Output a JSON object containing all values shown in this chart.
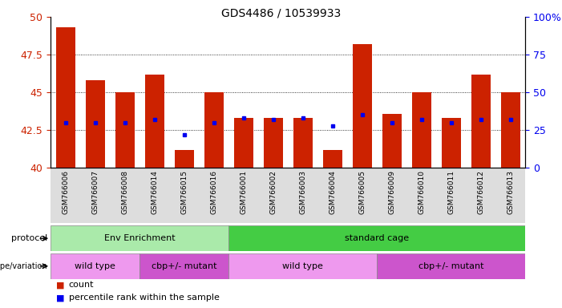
{
  "title": "GDS4486 / 10539933",
  "samples": [
    "GSM766006",
    "GSM766007",
    "GSM766008",
    "GSM766014",
    "GSM766015",
    "GSM766016",
    "GSM766001",
    "GSM766002",
    "GSM766003",
    "GSM766004",
    "GSM766005",
    "GSM766009",
    "GSM766010",
    "GSM766011",
    "GSM766012",
    "GSM766013"
  ],
  "bar_heights": [
    49.3,
    45.8,
    45.0,
    46.2,
    41.2,
    45.0,
    43.3,
    43.3,
    43.3,
    41.2,
    48.2,
    43.6,
    45.0,
    43.3,
    46.2,
    45.0
  ],
  "blue_dot_right": [
    30,
    30,
    30,
    32,
    22,
    30,
    33,
    32,
    33,
    28,
    35,
    30,
    32,
    30,
    32,
    32
  ],
  "ylim_left": [
    40,
    50
  ],
  "ylim_right": [
    0,
    100
  ],
  "yticks_left": [
    40,
    42.5,
    45,
    47.5,
    50
  ],
  "yticks_right": [
    0,
    25,
    50,
    75,
    100
  ],
  "bar_color": "#cc2200",
  "dot_color": "#0000ee",
  "background_color": "#ffffff",
  "protocol_groups": [
    {
      "label": "Env Enrichment",
      "start": 0,
      "end": 6,
      "color": "#aaeaaa"
    },
    {
      "label": "standard cage",
      "start": 6,
      "end": 16,
      "color": "#44cc44"
    }
  ],
  "genotype_groups": [
    {
      "label": "wild type",
      "start": 0,
      "end": 3,
      "color": "#ee99ee"
    },
    {
      "label": "cbp+/- mutant",
      "start": 3,
      "end": 6,
      "color": "#cc55cc"
    },
    {
      "label": "wild type",
      "start": 6,
      "end": 11,
      "color": "#ee99ee"
    },
    {
      "label": "cbp+/- mutant",
      "start": 11,
      "end": 16,
      "color": "#cc55cc"
    }
  ],
  "tick_label_color_left": "#cc2200",
  "tick_label_color_right": "#0000ee",
  "bar_width": 0.65
}
